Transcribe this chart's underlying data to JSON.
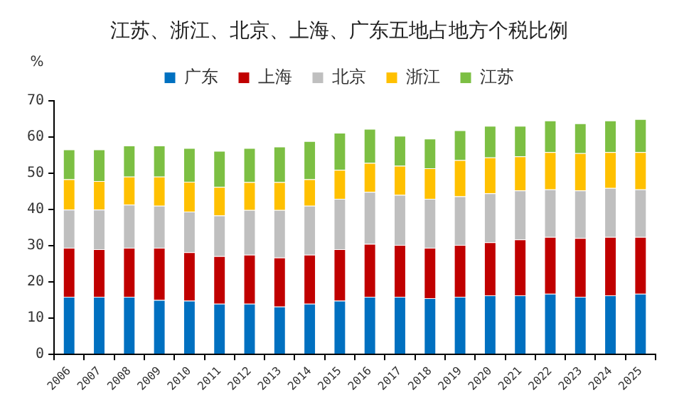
{
  "chart_data": {
    "type": "bar",
    "title": "江苏、浙江、北京、上海、广东五地占地方个税比例",
    "ylabel": "%",
    "stacked": true,
    "legend": "top",
    "grid": false,
    "categories": [
      "2006",
      "2007",
      "2008",
      "2009",
      "2010",
      "2011",
      "2012",
      "2013",
      "2014",
      "2015",
      "2016",
      "2017",
      "2018",
      "2019",
      "2020",
      "2021",
      "2022",
      "2023",
      "2024",
      "2025"
    ],
    "ylim": [
      0,
      70
    ],
    "yticks": [
      0,
      10,
      20,
      30,
      40,
      50,
      60,
      70
    ],
    "series": [
      {
        "name": "广东",
        "color": "#0070c0",
        "values": [
          15.9,
          15.9,
          15.9,
          15.0,
          14.8,
          14.0,
          14.0,
          13.2,
          14.0,
          14.8,
          15.9,
          15.9,
          15.5,
          15.9,
          16.3,
          16.3,
          16.7,
          15.9,
          16.3,
          16.7
        ]
      },
      {
        "name": "上海",
        "color": "#c00000",
        "values": [
          13.5,
          13.1,
          13.5,
          14.4,
          13.4,
          13.1,
          13.5,
          13.5,
          13.5,
          14.2,
          14.6,
          14.3,
          13.9,
          14.3,
          14.6,
          15.4,
          15.7,
          16.2,
          16.1,
          15.7
        ]
      },
      {
        "name": "北京",
        "color": "#bfbfbf",
        "values": [
          10.5,
          10.9,
          11.9,
          11.6,
          11.2,
          11.2,
          12.3,
          13.1,
          13.5,
          13.9,
          14.3,
          13.8,
          13.5,
          13.4,
          13.5,
          13.5,
          13.1,
          13.1,
          13.5,
          13.1
        ]
      },
      {
        "name": "浙江",
        "color": "#ffc000",
        "values": [
          8.4,
          7.9,
          7.7,
          8.0,
          8.2,
          7.9,
          7.7,
          7.7,
          7.3,
          8.0,
          8.0,
          8.0,
          8.4,
          10.0,
          9.9,
          9.4,
          10.3,
          10.3,
          9.9,
          10.3
        ]
      },
      {
        "name": "江苏",
        "color": "#7cbf43",
        "values": [
          8.2,
          8.7,
          8.6,
          8.6,
          9.3,
          9.9,
          9.4,
          9.8,
          10.5,
          10.2,
          9.4,
          8.3,
          8.2,
          8.2,
          8.7,
          8.4,
          8.7,
          8.2,
          8.7,
          9.1
        ]
      }
    ]
  }
}
